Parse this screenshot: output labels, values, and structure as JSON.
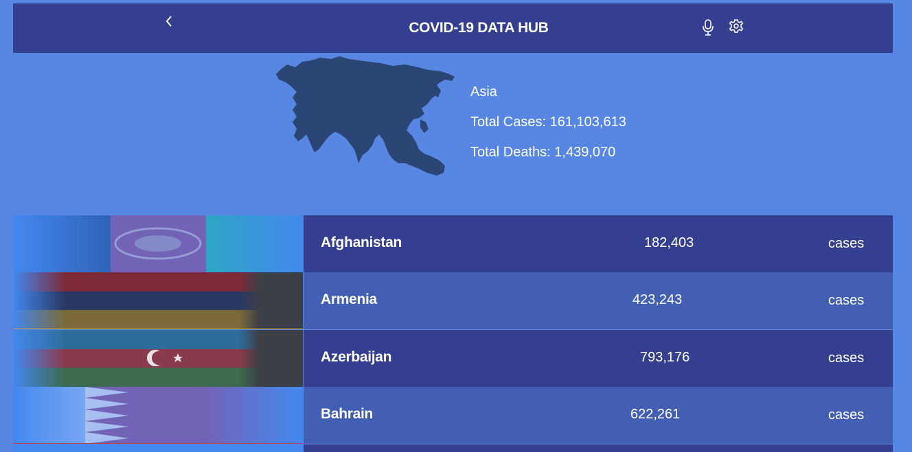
{
  "header": {
    "title": "COVID-19 DATA HUB",
    "back_icon": "chevron-left-icon",
    "mic_icon": "microphone-icon",
    "settings_icon": "gear-icon"
  },
  "region": {
    "name": "Asia",
    "total_cases": "Total Cases: 161,103,613",
    "total_deaths": "Total Deaths: 1,439,070",
    "map_icon": "asia-map-icon"
  },
  "countries": [
    {
      "name": "Afghanistan",
      "cases": "182,403",
      "unit": "cases"
    },
    {
      "name": "Armenia",
      "cases": "423,243",
      "unit": "cases"
    },
    {
      "name": "Azerbaijan",
      "cases": "793,176",
      "unit": "cases"
    },
    {
      "name": "Bahrain",
      "cases": "622,261",
      "unit": "cases"
    }
  ],
  "colors": {
    "page_background": "#5787e3",
    "header_background": "#353f8f",
    "row_dark": "#353f8f",
    "row_light": "#425fb3",
    "map_fill": "#2b4574",
    "text": "#ffffff"
  }
}
